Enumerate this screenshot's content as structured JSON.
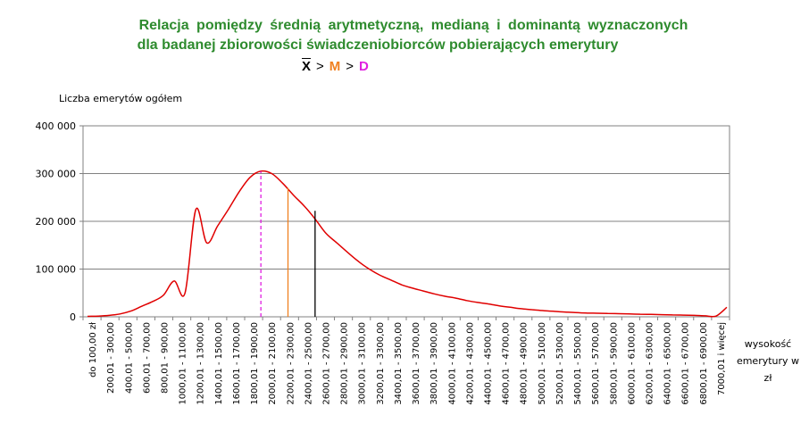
{
  "title_line1": "Relacja  pomiędzy  średnią  arytmetyczną,  medianą  i  dominantą  wyznaczonych",
  "title_line2": "dla badanej zbiorowości świadczeniobiorców pobierających emerytury",
  "formula": {
    "x": "X",
    "gt1": ">",
    "m": "M",
    "gt2": ">",
    "d": "D"
  },
  "colors": {
    "title": "#2e8b2e",
    "curve": "#e00000",
    "mean": "#000000",
    "median": "#f08020",
    "mode": "#e020e0"
  },
  "chart_data": {
    "type": "line",
    "ylabel": "Liczba emerytów ogółem",
    "xlabel": "wysokość emerytury w zł",
    "ylim": [
      0,
      400000
    ],
    "yticks": [
      0,
      100000,
      200000,
      300000,
      400000
    ],
    "ytick_labels": [
      "0",
      "100 000",
      "200 000",
      "300 000",
      "400 000"
    ],
    "grid": "horizontal",
    "tick_labels": [
      "do 100,00 zł",
      "200,01 - 300,00",
      "400,01 - 500,00",
      "600,01 - 700,00",
      "800,01 - 900,00",
      "1000,01 - 1100,00",
      "1200,01 - 1300,00",
      "1400,01 - 1500,00",
      "1600,01 - 1700,00",
      "1800,01 - 1900,00",
      "2000,01 - 2100,00",
      "2200,01 - 2300,00",
      "2400,01 - 2500,00",
      "2600,01 - 2700,00",
      "2800,01 - 2900,00",
      "3000,01 - 3100,00",
      "3200,01 - 3300,00",
      "3400,01 - 3500,00",
      "3600,01 - 3700,00",
      "3800,01 - 3900,00",
      "4000,01 - 4100,00",
      "4200,01 - 4300,00",
      "4400,01 - 4500,00",
      "4600,01 - 4700,00",
      "4800,01 - 4900,00",
      "5000,01 - 5100,00",
      "5200,01 - 5300,00",
      "5400,01 - 5500,00",
      "5600,01 - 5700,00",
      "5800,01 - 5900,00",
      "6000,01 - 6100,00",
      "6200,01 - 6300,00",
      "6400,01 - 6500,00",
      "6600,01 - 6700,00",
      "6800,01 - 6900,00",
      "7000,01 i więcej"
    ],
    "series": [
      {
        "values": [
          1000,
          1500,
          3000,
          6000,
          12000,
          22000,
          32000,
          45000,
          75000,
          50000,
          225000,
          155000,
          190000,
          225000,
          262000,
          292000,
          305000,
          300000,
          280000,
          255000,
          232000,
          205000,
          175000,
          155000,
          135000,
          116000,
          100000,
          87000,
          77000,
          67000,
          60000,
          54000,
          48000,
          43000,
          39000,
          34000,
          30000,
          27000,
          23000,
          20000,
          17000,
          15000,
          13000,
          11500,
          10000,
          9000,
          8000,
          7500,
          7000,
          6500,
          6000,
          5500,
          5000,
          4500,
          4000,
          3500,
          3000,
          2000,
          1500,
          20000
        ]
      }
    ],
    "lines": [
      {
        "label": "D",
        "x_index": 16,
        "y": 305000,
        "style": "dashed"
      },
      {
        "label": "M",
        "x_index": 18.5,
        "y": 270000,
        "style": "solid"
      },
      {
        "label": "X",
        "x_index": 21,
        "y": 222000,
        "style": "solid"
      }
    ]
  }
}
